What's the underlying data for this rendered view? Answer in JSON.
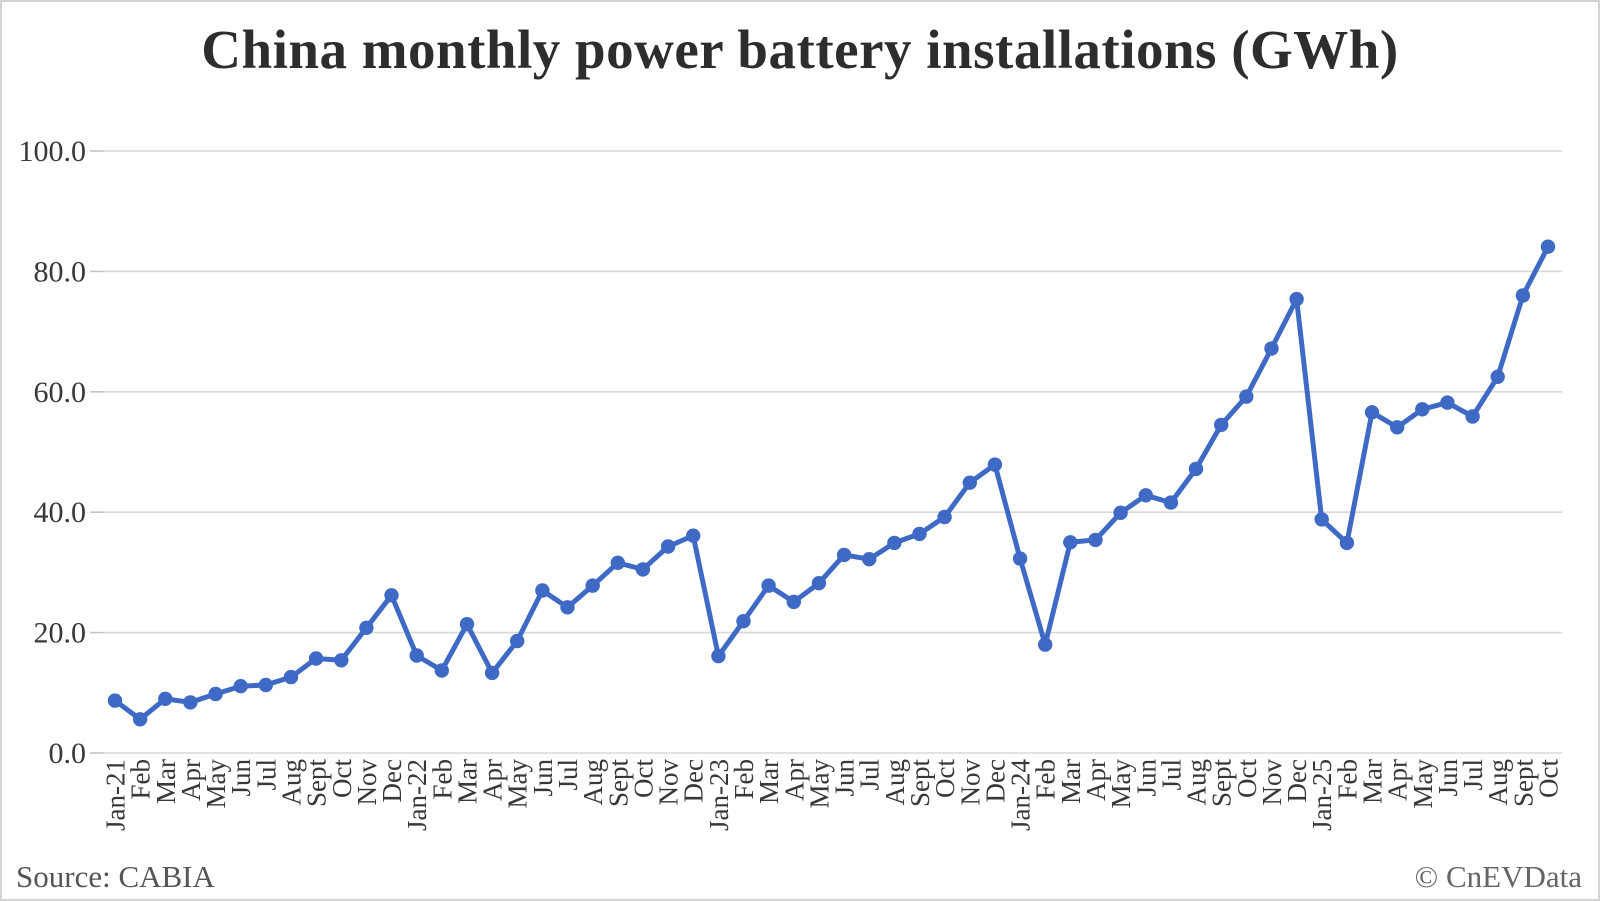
{
  "chart_data": {
    "type": "line",
    "title": "China monthly power battery installations (GWh)",
    "categories": [
      "Jan-21",
      "Feb",
      "Mar",
      "Apr",
      "May",
      "Jun",
      "Jul",
      "Aug",
      "Sept",
      "Oct",
      "Nov",
      "Dec",
      "Jan-22",
      "Feb",
      "Mar",
      "Apr",
      "May",
      "Jun",
      "Jul",
      "Aug",
      "Sept",
      "Oct",
      "Nov",
      "Dec",
      "Jan-23",
      "Feb",
      "Mar",
      "Apr",
      "May",
      "Jun",
      "Jul",
      "Aug",
      "Sept",
      "Oct",
      "Nov",
      "Dec",
      "Jan-24",
      "Feb",
      "Mar",
      "Apr",
      "May",
      "Jun",
      "Jul",
      "Aug",
      "Sept",
      "Oct",
      "Nov",
      "Dec",
      "Jan-25",
      "Feb",
      "Mar",
      "Apr",
      "May",
      "Jun",
      "Jul",
      "Aug",
      "Sept",
      "Oct"
    ],
    "series": [
      {
        "name": "Monthly power battery installations (GWh)",
        "values": [
          8.7,
          5.6,
          9.0,
          8.4,
          9.8,
          11.1,
          11.3,
          12.6,
          15.7,
          15.4,
          20.8,
          26.2,
          16.2,
          13.7,
          21.4,
          13.3,
          18.6,
          27.0,
          24.2,
          27.8,
          31.6,
          30.5,
          34.3,
          36.1,
          16.1,
          21.9,
          27.8,
          25.1,
          28.2,
          32.9,
          32.2,
          34.9,
          36.4,
          39.2,
          44.9,
          47.9,
          32.3,
          18.0,
          35.0,
          35.4,
          39.9,
          42.8,
          41.6,
          47.2,
          54.5,
          59.2,
          67.2,
          75.4,
          38.8,
          34.9,
          56.6,
          54.1,
          57.1,
          58.2,
          55.9,
          62.5,
          76.0,
          84.1
        ]
      }
    ],
    "xlabel": "",
    "ylabel": "",
    "ylim": [
      0,
      100
    ],
    "y_ticks": [
      0,
      20,
      40,
      60,
      80,
      100
    ],
    "y_tick_labels": [
      "0.0",
      "20.0",
      "40.0",
      "60.0",
      "80.0",
      "100.0"
    ],
    "grid": "horizontal",
    "legend_position": "none",
    "line_color": "#3e6ac5",
    "gridline_color": "#d8d8d8",
    "tick_color": "#c4c4c4",
    "axis_label_color": "#383838",
    "marker": "circle"
  },
  "footer": {
    "source": "Source: CABIA",
    "credit": "© CnEVData"
  }
}
